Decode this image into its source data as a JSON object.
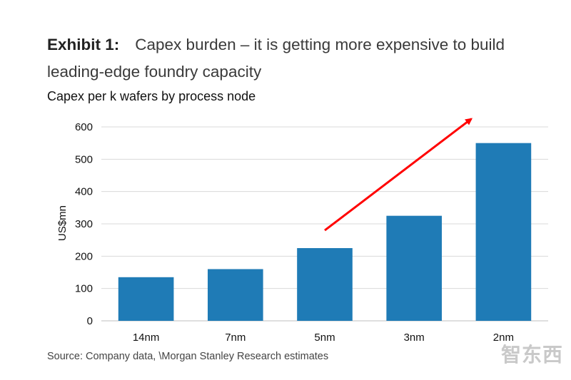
{
  "heading": {
    "label": "Exhibit 1:",
    "text": "Capex burden – it is getting more expensive to build leading-edge foundry capacity"
  },
  "source": "Source: Company data, \\Morgan Stanley Research estimates",
  "watermark": "智东西",
  "colors": {
    "bar": "#1f7bb6",
    "arrow": "#ff0000",
    "grid": "#d9d9d9"
  },
  "chart_data": {
    "type": "bar",
    "title": "Capex per k wafers by process node",
    "ylabel": "US$mn",
    "xlabel": "",
    "categories": [
      "14nm",
      "7nm",
      "5nm",
      "3nm",
      "2nm"
    ],
    "values": [
      135,
      160,
      225,
      325,
      550
    ],
    "ylim": [
      0,
      600
    ],
    "yticks": [
      0,
      100,
      200,
      300,
      400,
      500,
      600
    ],
    "grid": true,
    "legend": "none",
    "annotation": "red arrow indicating upward trend from 5nm to 2nm"
  }
}
